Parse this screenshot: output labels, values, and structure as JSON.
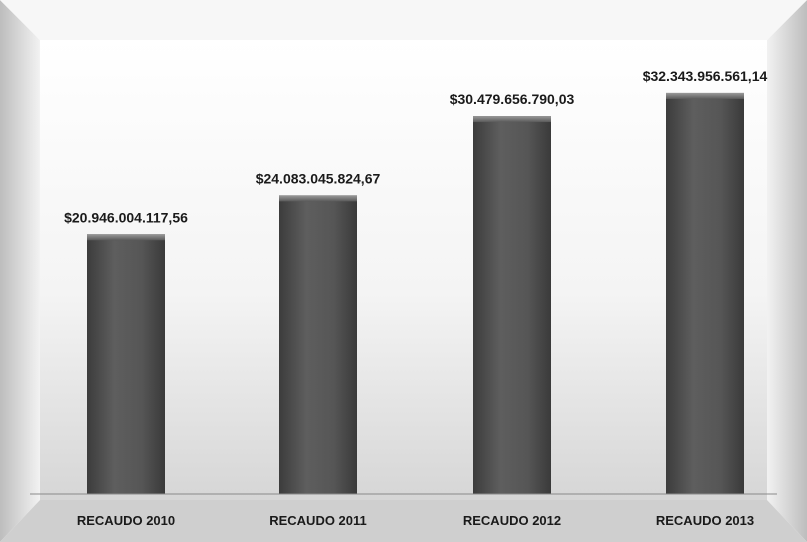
{
  "chart_data": {
    "type": "bar",
    "categories": [
      "RECAUDO 2010",
      "RECAUDO 2011",
      "RECAUDO 2012",
      "RECAUDO 2013"
    ],
    "values": [
      20946004117.56,
      24083045824.67,
      30479656790.03,
      32343956561.14
    ],
    "data_labels": [
      "$20.946.004.117,56",
      "$24.083.045.824,67",
      "$30.479.656.790,03",
      "$32.343.956.561,14"
    ],
    "title": "",
    "xlabel": "",
    "ylabel": "",
    "ylim": [
      0,
      35000000000
    ],
    "grid": false,
    "legend": "none",
    "colors": {
      "bar": "#5a5a5a",
      "bar_dark": "#3a3a3a",
      "bar_light": "#7a7a7a",
      "background_top": "#ffffff",
      "background_bottom": "#d9d9d9",
      "axis": "#888888"
    }
  }
}
